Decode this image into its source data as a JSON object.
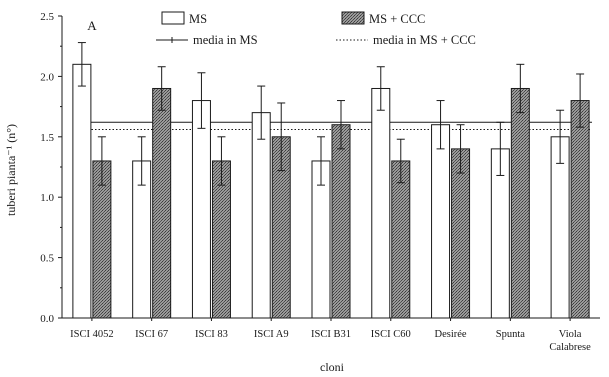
{
  "chart_data": {
    "type": "bar",
    "panel_label": "A",
    "xlabel": "cloni",
    "ylabel": "tuberi pianta⁻¹ (n°)",
    "ylim": [
      0,
      2.5
    ],
    "yticks": [
      "0.0",
      "0.5",
      "1.0",
      "1.5",
      "2.0",
      "2.5"
    ],
    "categories": [
      [
        "ISCI 4052"
      ],
      [
        "ISCI 67"
      ],
      [
        "ISCI 83"
      ],
      [
        "ISCI A9"
      ],
      [
        "ISCI B31"
      ],
      [
        "ISCI C60"
      ],
      [
        "Desirée"
      ],
      [
        "Spunta"
      ],
      [
        "Viola",
        "Calabrese"
      ]
    ],
    "series": [
      {
        "name": "MS",
        "fill": "#ffffff",
        "values": [
          2.1,
          1.3,
          1.8,
          1.7,
          1.3,
          1.9,
          1.6,
          1.4,
          1.5
        ],
        "errors": [
          0.18,
          0.2,
          0.23,
          0.22,
          0.2,
          0.18,
          0.2,
          0.22,
          0.22
        ]
      },
      {
        "name": "MS + CCC",
        "fill": "#8c8c8c",
        "values": [
          1.3,
          1.9,
          1.3,
          1.5,
          1.6,
          1.3,
          1.4,
          1.9,
          1.8
        ],
        "errors": [
          0.2,
          0.18,
          0.2,
          0.28,
          0.2,
          0.18,
          0.2,
          0.2,
          0.22
        ]
      }
    ],
    "reference_lines": [
      {
        "name": "media in MS",
        "value": 1.62,
        "style": "solid"
      },
      {
        "name": "media in MS + CCC",
        "value": 1.56,
        "style": "dotted"
      }
    ],
    "legend_position": "top",
    "grid": false
  }
}
